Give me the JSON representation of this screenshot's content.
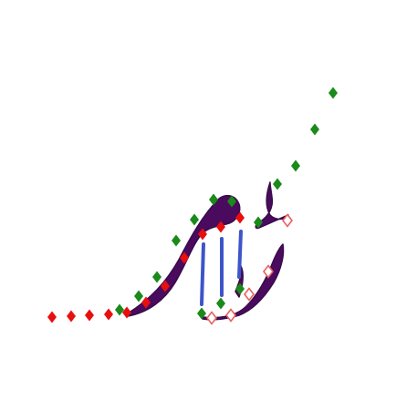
{
  "scene": {
    "background_color": "#ffffff",
    "stroke_color": "#4a0a5e",
    "stroke_outline_color": "#3a0a4a",
    "guide_line_color": "#3d55c8",
    "marker_colors": {
      "green": "#1a8a1a",
      "red": "#e80f0f",
      "outlined": "#e86060"
    },
    "marker_shape": "diamond",
    "marker_counts": {
      "green": 18,
      "red": 14,
      "outlined": 5
    },
    "guide_line_count": 3
  }
}
